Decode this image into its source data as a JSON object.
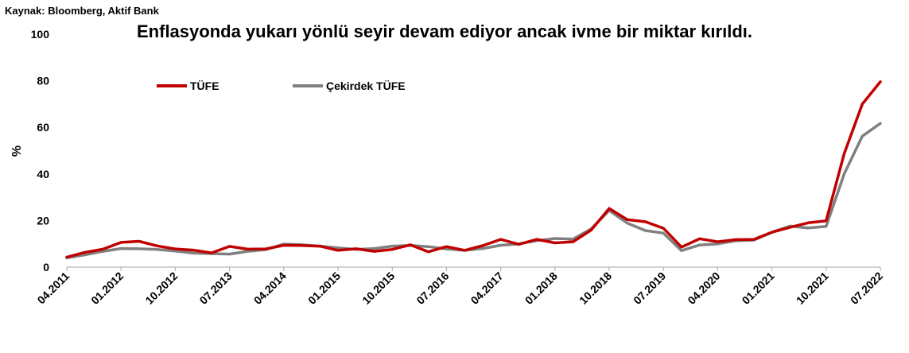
{
  "source": "Kaynak: Bloomberg, Aktif Bank",
  "chart_data": {
    "type": "line",
    "title": "Enflasyonda yukarı yönlü seyir devam ediyor ancak ivme bir miktar kırıldı.",
    "ylabel": "%",
    "xlabel": "",
    "ylim": [
      0,
      100
    ],
    "y_ticks": [
      0,
      20,
      40,
      60,
      80,
      100
    ],
    "x_tick_labels": [
      "04.2011",
      "01.2012",
      "10.2012",
      "07.2013",
      "04.2014",
      "01.2015",
      "10.2015",
      "07.2016",
      "04.2017",
      "01.2018",
      "10.2018",
      "07.2019",
      "04.2020",
      "01.2021",
      "10.2021",
      "07.2022"
    ],
    "grid": false,
    "legend_position": "top-left",
    "series": [
      {
        "name": "TÜFE",
        "color": "#c00000",
        "x": [
          "04.2011",
          "07.2011",
          "10.2011",
          "01.2012",
          "04.2012",
          "07.2012",
          "10.2012",
          "01.2013",
          "04.2013",
          "07.2013",
          "10.2013",
          "01.2014",
          "04.2014",
          "07.2014",
          "10.2014",
          "01.2015",
          "04.2015",
          "07.2015",
          "10.2015",
          "01.2016",
          "04.2016",
          "07.2016",
          "10.2016",
          "01.2017",
          "04.2017",
          "07.2017",
          "10.2017",
          "01.2018",
          "04.2018",
          "07.2018",
          "10.2018",
          "01.2019",
          "04.2019",
          "07.2019",
          "10.2019",
          "01.2020",
          "04.2020",
          "07.2020",
          "10.2020",
          "01.2021",
          "04.2021",
          "07.2021",
          "10.2021",
          "01.2022",
          "04.2022",
          "07.2022"
        ],
        "values": [
          4.3,
          6.3,
          7.7,
          10.6,
          11.1,
          9.1,
          7.8,
          7.3,
          6.1,
          8.9,
          7.7,
          7.8,
          9.4,
          9.3,
          9.0,
          7.2,
          7.9,
          6.8,
          7.6,
          9.6,
          6.6,
          8.8,
          7.2,
          9.2,
          11.9,
          9.8,
          11.9,
          10.4,
          10.9,
          15.9,
          25.2,
          20.4,
          19.5,
          16.7,
          8.6,
          12.2,
          10.9,
          11.8,
          11.9,
          15.0,
          17.1,
          19.0,
          19.9,
          48.7,
          70.0,
          79.6
        ]
      },
      {
        "name": "Çekirdek TÜFE",
        "color": "#808080",
        "x": [
          "04.2011",
          "07.2011",
          "10.2011",
          "01.2012",
          "04.2012",
          "07.2012",
          "10.2012",
          "01.2013",
          "04.2013",
          "07.2013",
          "10.2013",
          "01.2014",
          "04.2014",
          "07.2014",
          "10.2014",
          "01.2015",
          "04.2015",
          "07.2015",
          "10.2015",
          "01.2016",
          "04.2016",
          "07.2016",
          "10.2016",
          "01.2017",
          "04.2017",
          "07.2017",
          "10.2017",
          "01.2018",
          "04.2018",
          "07.2018",
          "10.2018",
          "01.2019",
          "04.2019",
          "07.2019",
          "10.2019",
          "01.2020",
          "04.2020",
          "07.2020",
          "10.2020",
          "01.2021",
          "04.2021",
          "07.2021",
          "10.2021",
          "01.2022",
          "04.2022",
          "07.2022"
        ],
        "values": [
          4.0,
          5.3,
          6.8,
          8.0,
          7.9,
          7.6,
          6.9,
          6.0,
          5.8,
          5.6,
          6.8,
          7.5,
          9.9,
          9.6,
          9.0,
          8.3,
          7.6,
          8.0,
          9.0,
          9.3,
          8.8,
          7.8,
          7.2,
          8.0,
          9.4,
          10.0,
          11.4,
          12.3,
          12.0,
          16.4,
          24.3,
          18.9,
          15.7,
          14.6,
          7.1,
          9.5,
          10.0,
          11.3,
          11.6,
          15.0,
          17.6,
          16.8,
          17.5,
          40.0,
          56.2,
          61.7
        ]
      }
    ]
  }
}
